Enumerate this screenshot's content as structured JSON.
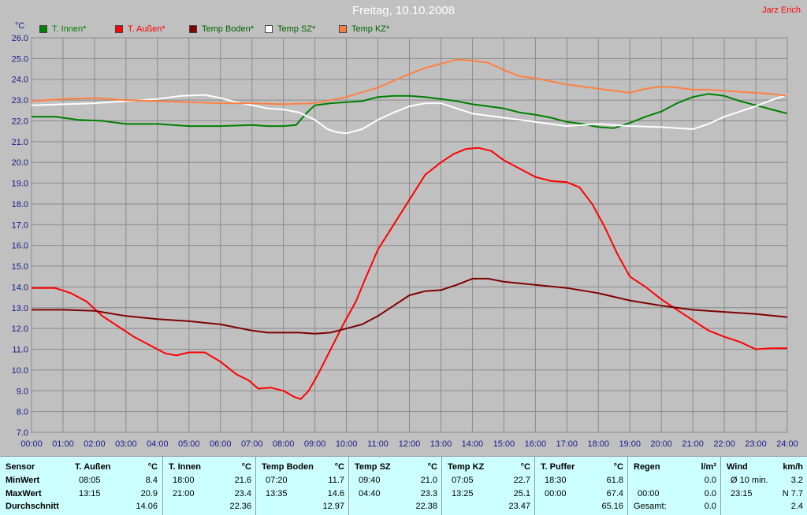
{
  "window": {
    "title": "Freitag, 10.10.2008",
    "author": "Jarz Erich"
  },
  "chart_data": {
    "type": "line",
    "y_unit": "°C",
    "ylim": [
      7.0,
      26.0
    ],
    "y_ticks": [
      "7.0",
      "8.0",
      "9.0",
      "10.0",
      "11.0",
      "12.0",
      "13.0",
      "14.0",
      "15.0",
      "16.0",
      "17.0",
      "18.0",
      "19.0",
      "20.0",
      "21.0",
      "22.0",
      "23.0",
      "24.0",
      "25.0",
      "26.0"
    ],
    "xlim": [
      0,
      24
    ],
    "x_ticks": [
      "00:00",
      "01:00",
      "02:00",
      "03:00",
      "04:00",
      "05:00",
      "06:00",
      "07:00",
      "08:00",
      "09:00",
      "10:00",
      "11:00",
      "12:00",
      "13:00",
      "14:00",
      "15:00",
      "16:00",
      "17:00",
      "18:00",
      "19:00",
      "20:00",
      "21:00",
      "22:00",
      "23:00",
      "24:00"
    ],
    "grid": true,
    "legend_position": "top",
    "series": [
      {
        "name": "T. Innen*",
        "color": "#008000",
        "points": [
          [
            0,
            22.2
          ],
          [
            0.75,
            22.2
          ],
          [
            1.5,
            22.05
          ],
          [
            2.25,
            22.0
          ],
          [
            3,
            21.85
          ],
          [
            4,
            21.85
          ],
          [
            5,
            21.75
          ],
          [
            6,
            21.75
          ],
          [
            7,
            21.8
          ],
          [
            7.5,
            21.75
          ],
          [
            8,
            21.75
          ],
          [
            8.4,
            21.8
          ],
          [
            8.75,
            22.4
          ],
          [
            9,
            22.75
          ],
          [
            9.5,
            22.85
          ],
          [
            10,
            22.9
          ],
          [
            10.5,
            22.95
          ],
          [
            11,
            23.15
          ],
          [
            11.5,
            23.2
          ],
          [
            12,
            23.2
          ],
          [
            12.5,
            23.15
          ],
          [
            13,
            23.05
          ],
          [
            13.5,
            22.95
          ],
          [
            14,
            22.8
          ],
          [
            14.5,
            22.7
          ],
          [
            15,
            22.6
          ],
          [
            15.5,
            22.4
          ],
          [
            16,
            22.3
          ],
          [
            16.5,
            22.15
          ],
          [
            17,
            21.95
          ],
          [
            17.5,
            21.85
          ],
          [
            18,
            21.7
          ],
          [
            18.5,
            21.65
          ],
          [
            19,
            21.9
          ],
          [
            19.5,
            22.2
          ],
          [
            20,
            22.45
          ],
          [
            20.5,
            22.85
          ],
          [
            21,
            23.15
          ],
          [
            21.5,
            23.3
          ],
          [
            22,
            23.2
          ],
          [
            22.5,
            22.95
          ],
          [
            23,
            22.75
          ],
          [
            23.5,
            22.55
          ],
          [
            24,
            22.35
          ]
        ]
      },
      {
        "name": "T. Außen*",
        "color": "#ff0000",
        "points": [
          [
            0,
            13.95
          ],
          [
            0.75,
            13.95
          ],
          [
            1.25,
            13.7
          ],
          [
            1.75,
            13.3
          ],
          [
            2.25,
            12.6
          ],
          [
            2.75,
            12.1
          ],
          [
            3.25,
            11.6
          ],
          [
            3.75,
            11.2
          ],
          [
            4.25,
            10.8
          ],
          [
            4.6,
            10.7
          ],
          [
            5,
            10.85
          ],
          [
            5.5,
            10.85
          ],
          [
            6,
            10.4
          ],
          [
            6.5,
            9.8
          ],
          [
            6.9,
            9.5
          ],
          [
            7.2,
            9.1
          ],
          [
            7.6,
            9.15
          ],
          [
            8,
            9.0
          ],
          [
            8.35,
            8.7
          ],
          [
            8.55,
            8.6
          ],
          [
            8.8,
            9.0
          ],
          [
            9.1,
            9.8
          ],
          [
            9.5,
            11.0
          ],
          [
            9.9,
            12.2
          ],
          [
            10.3,
            13.3
          ],
          [
            10.6,
            14.4
          ],
          [
            11,
            15.8
          ],
          [
            11.5,
            17.0
          ],
          [
            12,
            18.2
          ],
          [
            12.5,
            19.4
          ],
          [
            13,
            20.0
          ],
          [
            13.4,
            20.4
          ],
          [
            13.8,
            20.65
          ],
          [
            14.2,
            20.7
          ],
          [
            14.6,
            20.55
          ],
          [
            15,
            20.1
          ],
          [
            15.5,
            19.7
          ],
          [
            16,
            19.3
          ],
          [
            16.5,
            19.1
          ],
          [
            17,
            19.05
          ],
          [
            17.4,
            18.8
          ],
          [
            17.8,
            18.0
          ],
          [
            18.2,
            16.9
          ],
          [
            18.6,
            15.6
          ],
          [
            19,
            14.5
          ],
          [
            19.5,
            14.0
          ],
          [
            20,
            13.4
          ],
          [
            20.5,
            12.9
          ],
          [
            21,
            12.4
          ],
          [
            21.5,
            11.9
          ],
          [
            22,
            11.6
          ],
          [
            22.5,
            11.35
          ],
          [
            23,
            11.0
          ],
          [
            23.5,
            11.05
          ],
          [
            24,
            11.05
          ]
        ]
      },
      {
        "name": "Temp Boden*",
        "color": "#800000",
        "points": [
          [
            0,
            12.9
          ],
          [
            1,
            12.9
          ],
          [
            2,
            12.85
          ],
          [
            3,
            12.6
          ],
          [
            4,
            12.45
          ],
          [
            5,
            12.35
          ],
          [
            6,
            12.2
          ],
          [
            7,
            11.9
          ],
          [
            7.5,
            11.8
          ],
          [
            8,
            11.8
          ],
          [
            8.5,
            11.8
          ],
          [
            9,
            11.75
          ],
          [
            9.5,
            11.8
          ],
          [
            10,
            12.0
          ],
          [
            10.5,
            12.2
          ],
          [
            11,
            12.6
          ],
          [
            11.5,
            13.1
          ],
          [
            12,
            13.6
          ],
          [
            12.5,
            13.8
          ],
          [
            13,
            13.85
          ],
          [
            13.5,
            14.1
          ],
          [
            14,
            14.4
          ],
          [
            14.5,
            14.4
          ],
          [
            15,
            14.25
          ],
          [
            16,
            14.1
          ],
          [
            17,
            13.95
          ],
          [
            18,
            13.7
          ],
          [
            19,
            13.35
          ],
          [
            20,
            13.1
          ],
          [
            21,
            12.9
          ],
          [
            22,
            12.8
          ],
          [
            23,
            12.7
          ],
          [
            24,
            12.55
          ]
        ]
      },
      {
        "name": "Temp SZ*",
        "color": "#ffffff",
        "points": [
          [
            0,
            22.75
          ],
          [
            1,
            22.8
          ],
          [
            2,
            22.85
          ],
          [
            3,
            22.95
          ],
          [
            4,
            23.05
          ],
          [
            4.75,
            23.2
          ],
          [
            5.5,
            23.25
          ],
          [
            6,
            23.1
          ],
          [
            6.5,
            22.9
          ],
          [
            7,
            22.75
          ],
          [
            7.5,
            22.6
          ],
          [
            8,
            22.55
          ],
          [
            8.5,
            22.4
          ],
          [
            9,
            22.05
          ],
          [
            9.4,
            21.6
          ],
          [
            9.7,
            21.45
          ],
          [
            10,
            21.4
          ],
          [
            10.5,
            21.6
          ],
          [
            11,
            22.05
          ],
          [
            11.5,
            22.4
          ],
          [
            12,
            22.7
          ],
          [
            12.5,
            22.85
          ],
          [
            13,
            22.85
          ],
          [
            13.5,
            22.6
          ],
          [
            14,
            22.35
          ],
          [
            14.5,
            22.25
          ],
          [
            15,
            22.15
          ],
          [
            16,
            21.95
          ],
          [
            17,
            21.75
          ],
          [
            18,
            21.85
          ],
          [
            19,
            21.75
          ],
          [
            20,
            21.7
          ],
          [
            21,
            21.6
          ],
          [
            21.5,
            21.85
          ],
          [
            22,
            22.2
          ],
          [
            22.5,
            22.45
          ],
          [
            23,
            22.7
          ],
          [
            23.5,
            23.0
          ],
          [
            24,
            23.25
          ]
        ]
      },
      {
        "name": "Temp KZ*",
        "color": "#ff8040",
        "points": [
          [
            0,
            22.95
          ],
          [
            1,
            23.05
          ],
          [
            2,
            23.1
          ],
          [
            3,
            23.0
          ],
          [
            4,
            22.95
          ],
          [
            5,
            22.9
          ],
          [
            6,
            22.85
          ],
          [
            7,
            22.85
          ],
          [
            8,
            22.8
          ],
          [
            9,
            22.85
          ],
          [
            10,
            23.15
          ],
          [
            11,
            23.6
          ],
          [
            12,
            24.25
          ],
          [
            12.5,
            24.55
          ],
          [
            13,
            24.75
          ],
          [
            13.5,
            24.95
          ],
          [
            14,
            24.9
          ],
          [
            14.5,
            24.8
          ],
          [
            15,
            24.45
          ],
          [
            15.5,
            24.15
          ],
          [
            16,
            24.05
          ],
          [
            16.5,
            23.9
          ],
          [
            17,
            23.75
          ],
          [
            17.5,
            23.65
          ],
          [
            18,
            23.55
          ],
          [
            18.5,
            23.45
          ],
          [
            19,
            23.35
          ],
          [
            19.5,
            23.55
          ],
          [
            20,
            23.65
          ],
          [
            20.5,
            23.6
          ],
          [
            21,
            23.5
          ],
          [
            21.5,
            23.5
          ],
          [
            22,
            23.45
          ],
          [
            22.5,
            23.4
          ],
          [
            23,
            23.35
          ],
          [
            23.5,
            23.3
          ],
          [
            24,
            23.2
          ]
        ]
      }
    ]
  },
  "summary": {
    "sensor_header": "Sensor",
    "row_labels": [
      "MinWert",
      "MaxWert",
      "Durchschnitt"
    ],
    "columns": [
      {
        "name": "T. Außen",
        "unit": "°C",
        "min_time": "08:05",
        "min_val": "8.4",
        "max_time": "13:15",
        "max_val": "20.9",
        "avg": "14.06"
      },
      {
        "name": "T. Innen",
        "unit": "°C",
        "min_time": "18:00",
        "min_val": "21.6",
        "max_time": "21:00",
        "max_val": "23.4",
        "avg": "22.36"
      },
      {
        "name": "Temp Boden",
        "unit": "°C",
        "min_time": "07:20",
        "min_val": "11.7",
        "max_time": "13:35",
        "max_val": "14.6",
        "avg": "12.97"
      },
      {
        "name": "Temp SZ",
        "unit": "°C",
        "min_time": "09:40",
        "min_val": "21.0",
        "max_time": "04:40",
        "max_val": "23.3",
        "avg": "22.38"
      },
      {
        "name": "Temp KZ",
        "unit": "°C",
        "min_time": "07:05",
        "min_val": "22.7",
        "max_time": "13:25",
        "max_val": "25.1",
        "avg": "23.47"
      },
      {
        "name": "T. Puffer",
        "unit": "°C",
        "min_time": "18:30",
        "min_val": "61.8",
        "max_time": "00:00",
        "max_val": "67.4",
        "avg": "65.16"
      },
      {
        "name": "Regen",
        "unit": "l/m²",
        "min_time": "",
        "min_val": "0.0",
        "max_time": "00:00",
        "max_val": "0.0",
        "avg_label": "Gesamt:",
        "avg": "0.0"
      },
      {
        "name": "Wind",
        "unit": "km/h",
        "min_time": "Ø 10 min.",
        "min_val": "3.2",
        "max_time": "23:15",
        "max_val": "N 7.7",
        "avg": "2.4"
      }
    ]
  }
}
